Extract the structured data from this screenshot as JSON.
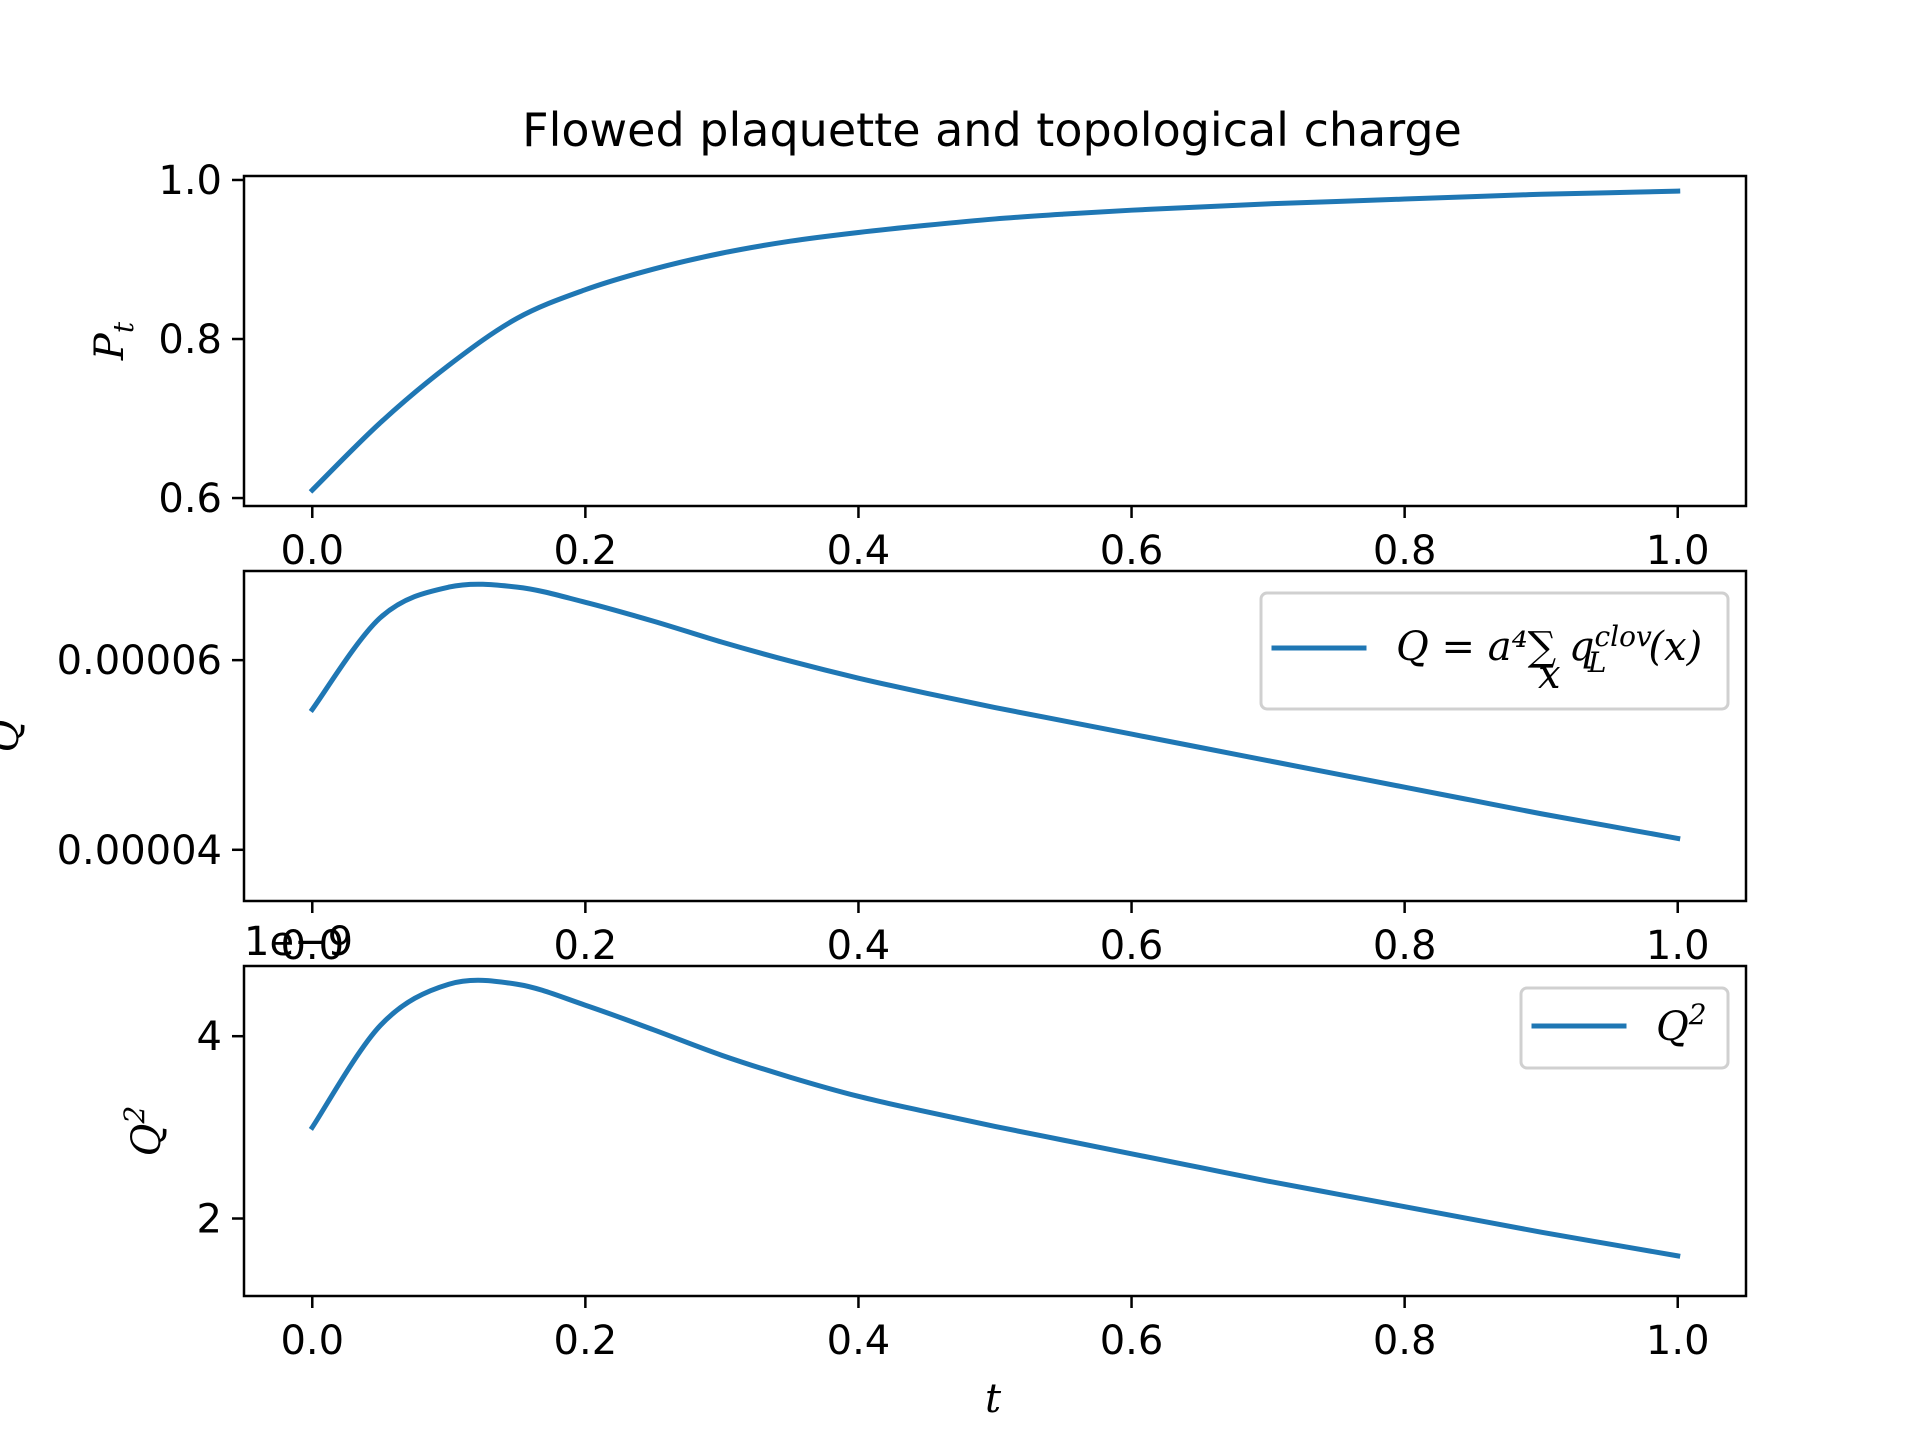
{
  "chart_data": {
    "type": "line",
    "title": "Flowed plaquette and topological charge",
    "line_color": "#1f77b4",
    "x": [
      0.0,
      0.05,
      0.1,
      0.15,
      0.2,
      0.25,
      0.3,
      0.35,
      0.4,
      0.45,
      0.5,
      0.55,
      0.6,
      0.65,
      0.7,
      0.75,
      0.8,
      0.85,
      0.9,
      0.95,
      1.0
    ],
    "xlabel": "t",
    "xlim": [
      -0.05,
      1.05
    ],
    "xticks": [
      "0.0",
      "0.2",
      "0.4",
      "0.6",
      "0.8",
      "1.0"
    ],
    "panels": [
      {
        "ylabel": "P",
        "ylabel_sub": "t",
        "ylim": [
          0.59,
          1.005
        ],
        "yticks": [
          0.6,
          0.8,
          1.0
        ],
        "ytick_labels": [
          "0.6",
          "0.8",
          "1.0"
        ],
        "values": [
          0.61,
          0.695,
          0.767,
          0.826,
          0.862,
          0.888,
          0.908,
          0.923,
          0.934,
          0.943,
          0.951,
          0.957,
          0.962,
          0.966,
          0.97,
          0.973,
          0.976,
          0.979,
          0.982,
          0.984,
          0.986
        ]
      },
      {
        "ylabel": "Q",
        "ylim": [
          3.46e-05,
          6.94e-05
        ],
        "yticks": [
          4e-05,
          6e-05
        ],
        "ytick_labels": [
          "0.00004",
          "0.00006"
        ],
        "values": [
          5.48e-05,
          6.45e-05,
          6.77e-05,
          6.77e-05,
          6.61e-05,
          6.41e-05,
          6.19e-05,
          5.99e-05,
          5.81e-05,
          5.65e-05,
          5.5e-05,
          5.36e-05,
          5.22e-05,
          5.08e-05,
          4.94e-05,
          4.8e-05,
          4.66e-05,
          4.52e-05,
          4.38e-05,
          4.25e-05,
          4.12e-05
        ],
        "legend": {
          "label": "Q = a⁴∑ q",
          "sum_index": "x",
          "q_sup": "clov",
          "q_sub": "L",
          "tail": "(x)",
          "placement": "upper right"
        }
      },
      {
        "ylabel": "Q",
        "ylabel_sup": "2",
        "offset_text": "1e−9",
        "ylim": [
          1.15,
          4.77
        ],
        "yticks": [
          2,
          4
        ],
        "ytick_labels": [
          "2",
          "4"
        ],
        "values": [
          3.0,
          4.12,
          4.57,
          4.57,
          4.34,
          4.07,
          3.79,
          3.55,
          3.34,
          3.17,
          3.01,
          2.86,
          2.71,
          2.56,
          2.41,
          2.27,
          2.13,
          1.99,
          1.85,
          1.72,
          1.59
        ],
        "legend": {
          "label": "Q",
          "sup": "2",
          "placement": "upper right"
        }
      }
    ]
  }
}
